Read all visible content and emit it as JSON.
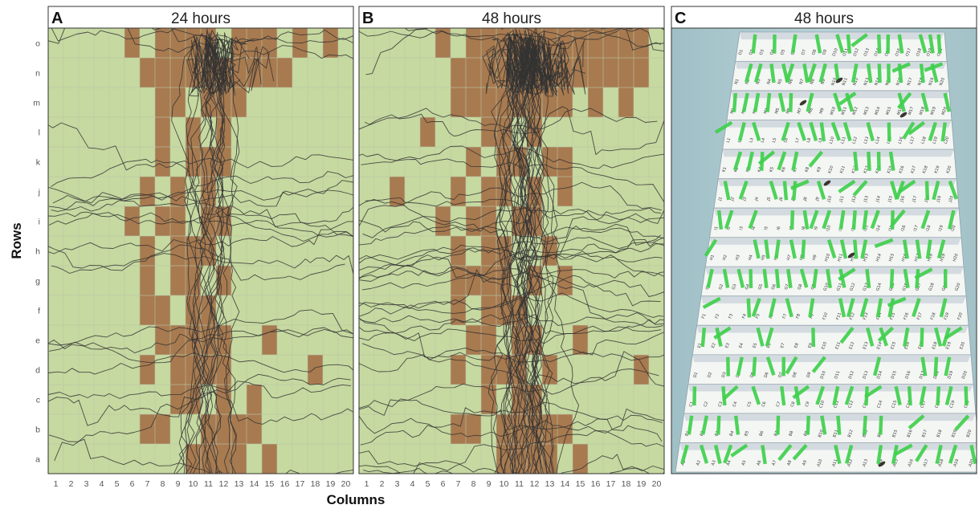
{
  "figure": {
    "y_axis_label": "Rows",
    "x_axis_label": "Columns"
  },
  "chart_data": [
    {
      "type": "heatmap",
      "panel_letter": "A",
      "title": "24 hours",
      "xlabel": "Columns",
      "ylabel": "Rows",
      "x_categories": [
        "1",
        "2",
        "3",
        "4",
        "5",
        "6",
        "7",
        "8",
        "9",
        "10",
        "11",
        "12",
        "13",
        "14",
        "15",
        "16",
        "17",
        "18",
        "19",
        "20"
      ],
      "y_categories": [
        "a",
        "b",
        "c",
        "d",
        "e",
        "f",
        "g",
        "h",
        "i",
        "j",
        "k",
        "l",
        "m",
        "n",
        "o"
      ],
      "grid": true,
      "colors": {
        "background": "#c6d9a0",
        "visited": "#a87a4f",
        "tracks": "#333333",
        "grid": "#b8c7a8"
      },
      "visited_cells": {
        "o": [
          6,
          8,
          9,
          10,
          11,
          13,
          14,
          15,
          17,
          19
        ],
        "n": [
          7,
          8,
          9,
          10,
          11,
          12,
          13,
          14,
          15,
          16
        ],
        "m": [
          8,
          9,
          11,
          12,
          13
        ],
        "l": [
          8,
          10,
          12
        ],
        "k": [
          8,
          10,
          11,
          12
        ],
        "j": [
          7,
          9,
          11
        ],
        "i": [
          6,
          8,
          9,
          11,
          12
        ],
        "h": [
          7,
          9,
          10,
          11
        ],
        "g": [
          7,
          9,
          10,
          12
        ],
        "f": [
          7,
          8,
          10,
          11
        ],
        "e": [
          8,
          9,
          10,
          11,
          12,
          15
        ],
        "d": [
          7,
          9,
          10,
          11,
          12,
          18
        ],
        "c": [
          9,
          10,
          12,
          14
        ],
        "b": [
          7,
          8,
          11,
          12,
          13,
          14
        ],
        "a": [
          10,
          11,
          12,
          13,
          15
        ]
      },
      "track_count": 40
    },
    {
      "type": "heatmap",
      "panel_letter": "B",
      "title": "48 hours",
      "xlabel": "Columns",
      "ylabel": "Rows",
      "x_categories": [
        "1",
        "2",
        "3",
        "4",
        "5",
        "6",
        "7",
        "8",
        "9",
        "10",
        "11",
        "12",
        "13",
        "14",
        "15",
        "16",
        "17",
        "18",
        "19",
        "20"
      ],
      "y_categories": [
        "a",
        "b",
        "c",
        "d",
        "e",
        "f",
        "g",
        "h",
        "i",
        "j",
        "k",
        "l",
        "m",
        "n",
        "o"
      ],
      "grid": true,
      "colors": {
        "background": "#c6d9a0",
        "visited": "#a87a4f",
        "tracks": "#333333",
        "grid": "#b8c7a8"
      },
      "visited_cells": {
        "o": [
          6,
          8,
          9,
          10,
          11,
          12,
          13,
          14,
          15,
          16,
          17,
          18,
          19
        ],
        "n": [
          7,
          8,
          9,
          10,
          11,
          12,
          13,
          14,
          15,
          16,
          17,
          18,
          19
        ],
        "m": [
          7,
          8,
          9,
          10,
          11,
          12,
          13,
          14,
          16,
          18
        ],
        "l": [
          5,
          9,
          10,
          12
        ],
        "k": [
          8,
          10,
          11,
          13,
          14
        ],
        "j": [
          3,
          7,
          9,
          10,
          12,
          14
        ],
        "i": [
          6,
          8,
          9,
          11,
          12
        ],
        "h": [
          7,
          9,
          10,
          13
        ],
        "g": [
          7,
          8,
          9,
          10,
          12,
          14
        ],
        "f": [
          7,
          9,
          10,
          11
        ],
        "e": [
          8,
          9,
          11,
          12,
          15
        ],
        "d": [
          7,
          9,
          10,
          11,
          13,
          19
        ],
        "c": [
          9,
          11,
          12
        ],
        "b": [
          7,
          8,
          10,
          11,
          12,
          13,
          14
        ],
        "a": [
          10,
          11,
          12,
          13,
          15
        ]
      },
      "track_count": 70
    }
  ],
  "photo_panel": {
    "panel_letter": "C",
    "title": "48 hours",
    "board_rows": [
      {
        "letter": "A",
        "labels": [
          "A1",
          "A2",
          "A3",
          "A4",
          "A5",
          "A6",
          "A7",
          "A8",
          "A9",
          "A10",
          "A11",
          "A12",
          "A13",
          "A14",
          "A15",
          "A16",
          "A17",
          "A18",
          "A19",
          "A20"
        ]
      },
      {
        "letter": "B",
        "labels": [
          "B1",
          "B2",
          "B3",
          "B4",
          "B5",
          "B6",
          "B7",
          "B8",
          "B9",
          "B10",
          "B11",
          "B12",
          "B13",
          "B14",
          "B15",
          "B16",
          "B17",
          "B18",
          "B19",
          "B20"
        ]
      },
      {
        "letter": "C",
        "labels": [
          "C1",
          "C2",
          "C3",
          "C4",
          "C5",
          "C6",
          "C7",
          "C8",
          "C9",
          "C10",
          "C11",
          "C12",
          "C13",
          "C14",
          "C15",
          "C16",
          "C17",
          "C18",
          "C19",
          "C20"
        ]
      },
      {
        "letter": "D",
        "labels": [
          "D1",
          "D2",
          "D3",
          "D4",
          "D5",
          "D6",
          "D7",
          "D8",
          "D9",
          "D10",
          "D11",
          "D12",
          "D13",
          "D14",
          "D15",
          "D16",
          "D17",
          "D18",
          "D19",
          "D20"
        ]
      },
      {
        "letter": "E",
        "labels": [
          "E1",
          "E2",
          "E3",
          "E4",
          "E5",
          "E6",
          "E7",
          "E8",
          "E9",
          "E10",
          "E11",
          "E12",
          "E13",
          "E14",
          "E15",
          "E16",
          "E17",
          "E18",
          "E19",
          "E20"
        ]
      },
      {
        "letter": "F",
        "labels": [
          "F1",
          "F2",
          "F3",
          "F4",
          "F5",
          "F6",
          "F7",
          "F8",
          "F9",
          "F10",
          "F11",
          "F12",
          "F13",
          "F14",
          "F15",
          "F16",
          "F17",
          "F18",
          "F19",
          "F20"
        ]
      },
      {
        "letter": "G",
        "labels": [
          "G1",
          "G2",
          "G3",
          "G4",
          "G5",
          "G6",
          "G7",
          "G8",
          "G9",
          "G10",
          "G11",
          "G12",
          "G13",
          "G14",
          "G15",
          "G16",
          "G17",
          "G18",
          "G19",
          "G20"
        ]
      },
      {
        "letter": "H",
        "labels": [
          "H1",
          "H2",
          "H3",
          "H4",
          "H5",
          "H6",
          "H7",
          "H8",
          "H9",
          "H10",
          "H11",
          "H12",
          "H13",
          "H14",
          "H15",
          "H16",
          "H17",
          "H18",
          "H19",
          "H20"
        ]
      },
      {
        "letter": "I",
        "labels": [
          "I1",
          "I2",
          "I3",
          "I4",
          "I5",
          "I6",
          "I7",
          "I8",
          "I9",
          "I10",
          "I11",
          "I12",
          "I13",
          "I14",
          "I15",
          "I16",
          "I17",
          "I18",
          "I19",
          "I20"
        ]
      },
      {
        "letter": "J",
        "labels": [
          "J1",
          "J2",
          "J3",
          "J4",
          "J5",
          "J6",
          "J7",
          "J8",
          "J9",
          "J10",
          "J11",
          "J12",
          "J13",
          "J14",
          "J15",
          "J16",
          "J17",
          "J18",
          "J19",
          "J20"
        ]
      },
      {
        "letter": "K",
        "labels": [
          "K1",
          "K2",
          "K3",
          "K4",
          "K5",
          "K6",
          "K7",
          "K8",
          "K9",
          "K10",
          "K11",
          "K12",
          "K13",
          "K14",
          "K15",
          "K16",
          "K17",
          "K18",
          "K19",
          "K20"
        ]
      },
      {
        "letter": "L",
        "labels": [
          "L1",
          "L2",
          "L3",
          "L4",
          "L5",
          "L6",
          "L7",
          "L8",
          "L9",
          "L10",
          "L11",
          "L12",
          "L13",
          "L14",
          "L15",
          "L16",
          "L17",
          "L18",
          "L19",
          "L20"
        ]
      },
      {
        "letter": "M",
        "labels": [
          "M1",
          "M2",
          "M3",
          "M4",
          "M5",
          "M6",
          "M7",
          "M8",
          "M9",
          "M10",
          "M11",
          "M12",
          "M13",
          "M14",
          "M15",
          "M16",
          "M17",
          "M18",
          "M19",
          "M20"
        ]
      },
      {
        "letter": "N",
        "labels": [
          "N1",
          "N2",
          "N3",
          "N4",
          "N5",
          "N6",
          "N7",
          "N8",
          "N9",
          "N10",
          "N11",
          "N12",
          "N13",
          "N14",
          "N15",
          "N16",
          "N17",
          "N18",
          "N19",
          "N20"
        ]
      },
      {
        "letter": "O",
        "labels": [
          "O1",
          "O2",
          "O3",
          "O4",
          "O5",
          "O6",
          "O7",
          "O8",
          "O9",
          "O10",
          "O11",
          "O12",
          "O13",
          "O14",
          "O15",
          "O16",
          "O17",
          "O18",
          "O19",
          "O20"
        ]
      }
    ],
    "colors": {
      "frame": "#a9c6cc",
      "board": "#f4f6f4",
      "tape": "#3fcf4c",
      "shadow": "#b9c4d0"
    }
  }
}
